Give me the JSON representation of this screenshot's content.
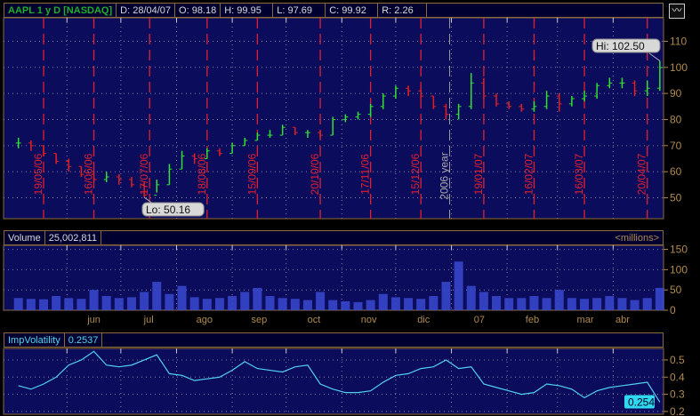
{
  "header": {
    "title": "AAPL 1 y D [NASDAQ]",
    "date": "D: 28/04/07",
    "open": "O: 98.18",
    "high": "H: 99.95",
    "low": "L: 97.69",
    "close": "C: 99.92",
    "range": "R: 2.26"
  },
  "toolbar": {
    "chart_style_icon": "line-chart-icon"
  },
  "volume_panel": {
    "label": "Volume",
    "value": "25,002,811",
    "unit": "<millions>"
  },
  "iv_panel": {
    "label": "ImpVolatility",
    "value": "0.2537",
    "last_badge": "0.254"
  },
  "colors": {
    "background": "#0c0c5c",
    "up": "#30e030",
    "down": "#e02020",
    "axis": "#b08a50",
    "volume": "#3a4ad0",
    "iv_line": "#50d0f0",
    "marker_line": "#e02030",
    "border": "#8a6a3a"
  },
  "chart_data": [
    {
      "type": "ohlc",
      "ylim": [
        42,
        119
      ],
      "yticks": [
        50,
        60,
        70,
        80,
        90,
        100,
        110
      ],
      "grid": true,
      "annotations": {
        "low": "Lo: 50.16",
        "high": "Hi: 102.50"
      },
      "date_markers": [
        "19/05/06",
        "16/06/06",
        "17/07/06",
        "18/08/06",
        "15/09/06",
        "20/10/06",
        "17/11/06",
        "15/12/06",
        "19/01/07",
        "16/02/07",
        "16/03/07",
        "20/04/07"
      ],
      "year_marker": "2006 year",
      "x": [
        "2006-05-05",
        "2006-05-12",
        "2006-05-19",
        "2006-05-26",
        "2006-06-02",
        "2006-06-09",
        "2006-06-16",
        "2006-06-23",
        "2006-06-30",
        "2006-07-07",
        "2006-07-14",
        "2006-07-21",
        "2006-07-28",
        "2006-08-04",
        "2006-08-11",
        "2006-08-18",
        "2006-08-25",
        "2006-09-01",
        "2006-09-08",
        "2006-09-15",
        "2006-09-22",
        "2006-09-29",
        "2006-10-06",
        "2006-10-13",
        "2006-10-20",
        "2006-10-27",
        "2006-11-03",
        "2006-11-10",
        "2006-11-17",
        "2006-11-24",
        "2006-12-01",
        "2006-12-08",
        "2006-12-15",
        "2006-12-22",
        "2006-12-29",
        "2007-01-05",
        "2007-01-12",
        "2007-01-19",
        "2007-01-26",
        "2007-02-02",
        "2007-02-09",
        "2007-02-16",
        "2007-02-23",
        "2007-03-02",
        "2007-03-09",
        "2007-03-16",
        "2007-03-23",
        "2007-03-30",
        "2007-04-06",
        "2007-04-13",
        "2007-04-20",
        "2007-04-27"
      ],
      "close": [
        71,
        70,
        67,
        64,
        62,
        59,
        57,
        58,
        57,
        55,
        51,
        55,
        61,
        66,
        65,
        68,
        67,
        70,
        72,
        74,
        74,
        77,
        75,
        75,
        74,
        80,
        81,
        82,
        85,
        89,
        92,
        91,
        89,
        85,
        82,
        85,
        94,
        89,
        86,
        85,
        84,
        85,
        89,
        86,
        88,
        89,
        93,
        94,
        94,
        91,
        92,
        99.92
      ],
      "high": [
        73,
        72,
        70,
        67,
        65,
        62,
        60,
        60,
        59,
        58,
        56,
        57,
        63,
        68,
        67,
        69,
        69,
        71,
        73,
        75,
        76,
        78,
        77,
        76,
        76,
        81,
        82,
        83,
        86,
        90,
        93,
        93,
        92,
        89,
        86,
        86,
        97.8,
        96,
        90,
        87,
        86,
        87,
        91,
        90,
        89,
        91,
        94,
        96,
        96,
        95,
        95,
        102.5
      ],
      "low": [
        69,
        68,
        66,
        63,
        60,
        58,
        56,
        56,
        55,
        54,
        50.16,
        52,
        55,
        61,
        63,
        65,
        66,
        67,
        70,
        72,
        73,
        74,
        74,
        73,
        73,
        74,
        79,
        80,
        81,
        84,
        88,
        89,
        88,
        84,
        80,
        80,
        84,
        88,
        85,
        84,
        83,
        83,
        84,
        83,
        85,
        87,
        88,
        92,
        92,
        89,
        89,
        91
      ]
    },
    {
      "type": "bar",
      "ylabel": "<millions>",
      "ylim": [
        0,
        160
      ],
      "yticks": [
        0,
        50,
        100,
        150
      ],
      "month_labels": [
        "jun",
        "jul",
        "ago",
        "sep",
        "oct",
        "nov",
        "dic",
        "07",
        "feb",
        "mar",
        "abr"
      ],
      "values": [
        30,
        28,
        27,
        35,
        30,
        28,
        50,
        35,
        30,
        32,
        45,
        70,
        40,
        60,
        32,
        28,
        30,
        35,
        45,
        55,
        35,
        30,
        28,
        25,
        45,
        25,
        22,
        20,
        25,
        40,
        32,
        30,
        28,
        35,
        70,
        120,
        60,
        45,
        35,
        30,
        30,
        35,
        30,
        50,
        30,
        28,
        30,
        35,
        30,
        25,
        30,
        55
      ]
    },
    {
      "type": "line",
      "ylim": [
        0.184,
        0.567
      ],
      "yticks": [
        0.2,
        0.3,
        0.4,
        0.5
      ],
      "values": [
        0.35,
        0.33,
        0.36,
        0.4,
        0.47,
        0.5,
        0.55,
        0.47,
        0.46,
        0.47,
        0.5,
        0.53,
        0.42,
        0.41,
        0.38,
        0.39,
        0.4,
        0.44,
        0.49,
        0.45,
        0.44,
        0.43,
        0.46,
        0.47,
        0.36,
        0.33,
        0.31,
        0.31,
        0.32,
        0.37,
        0.41,
        0.42,
        0.45,
        0.46,
        0.5,
        0.45,
        0.46,
        0.36,
        0.34,
        0.32,
        0.3,
        0.31,
        0.36,
        0.35,
        0.33,
        0.28,
        0.32,
        0.34,
        0.35,
        0.36,
        0.37,
        0.254
      ]
    }
  ]
}
